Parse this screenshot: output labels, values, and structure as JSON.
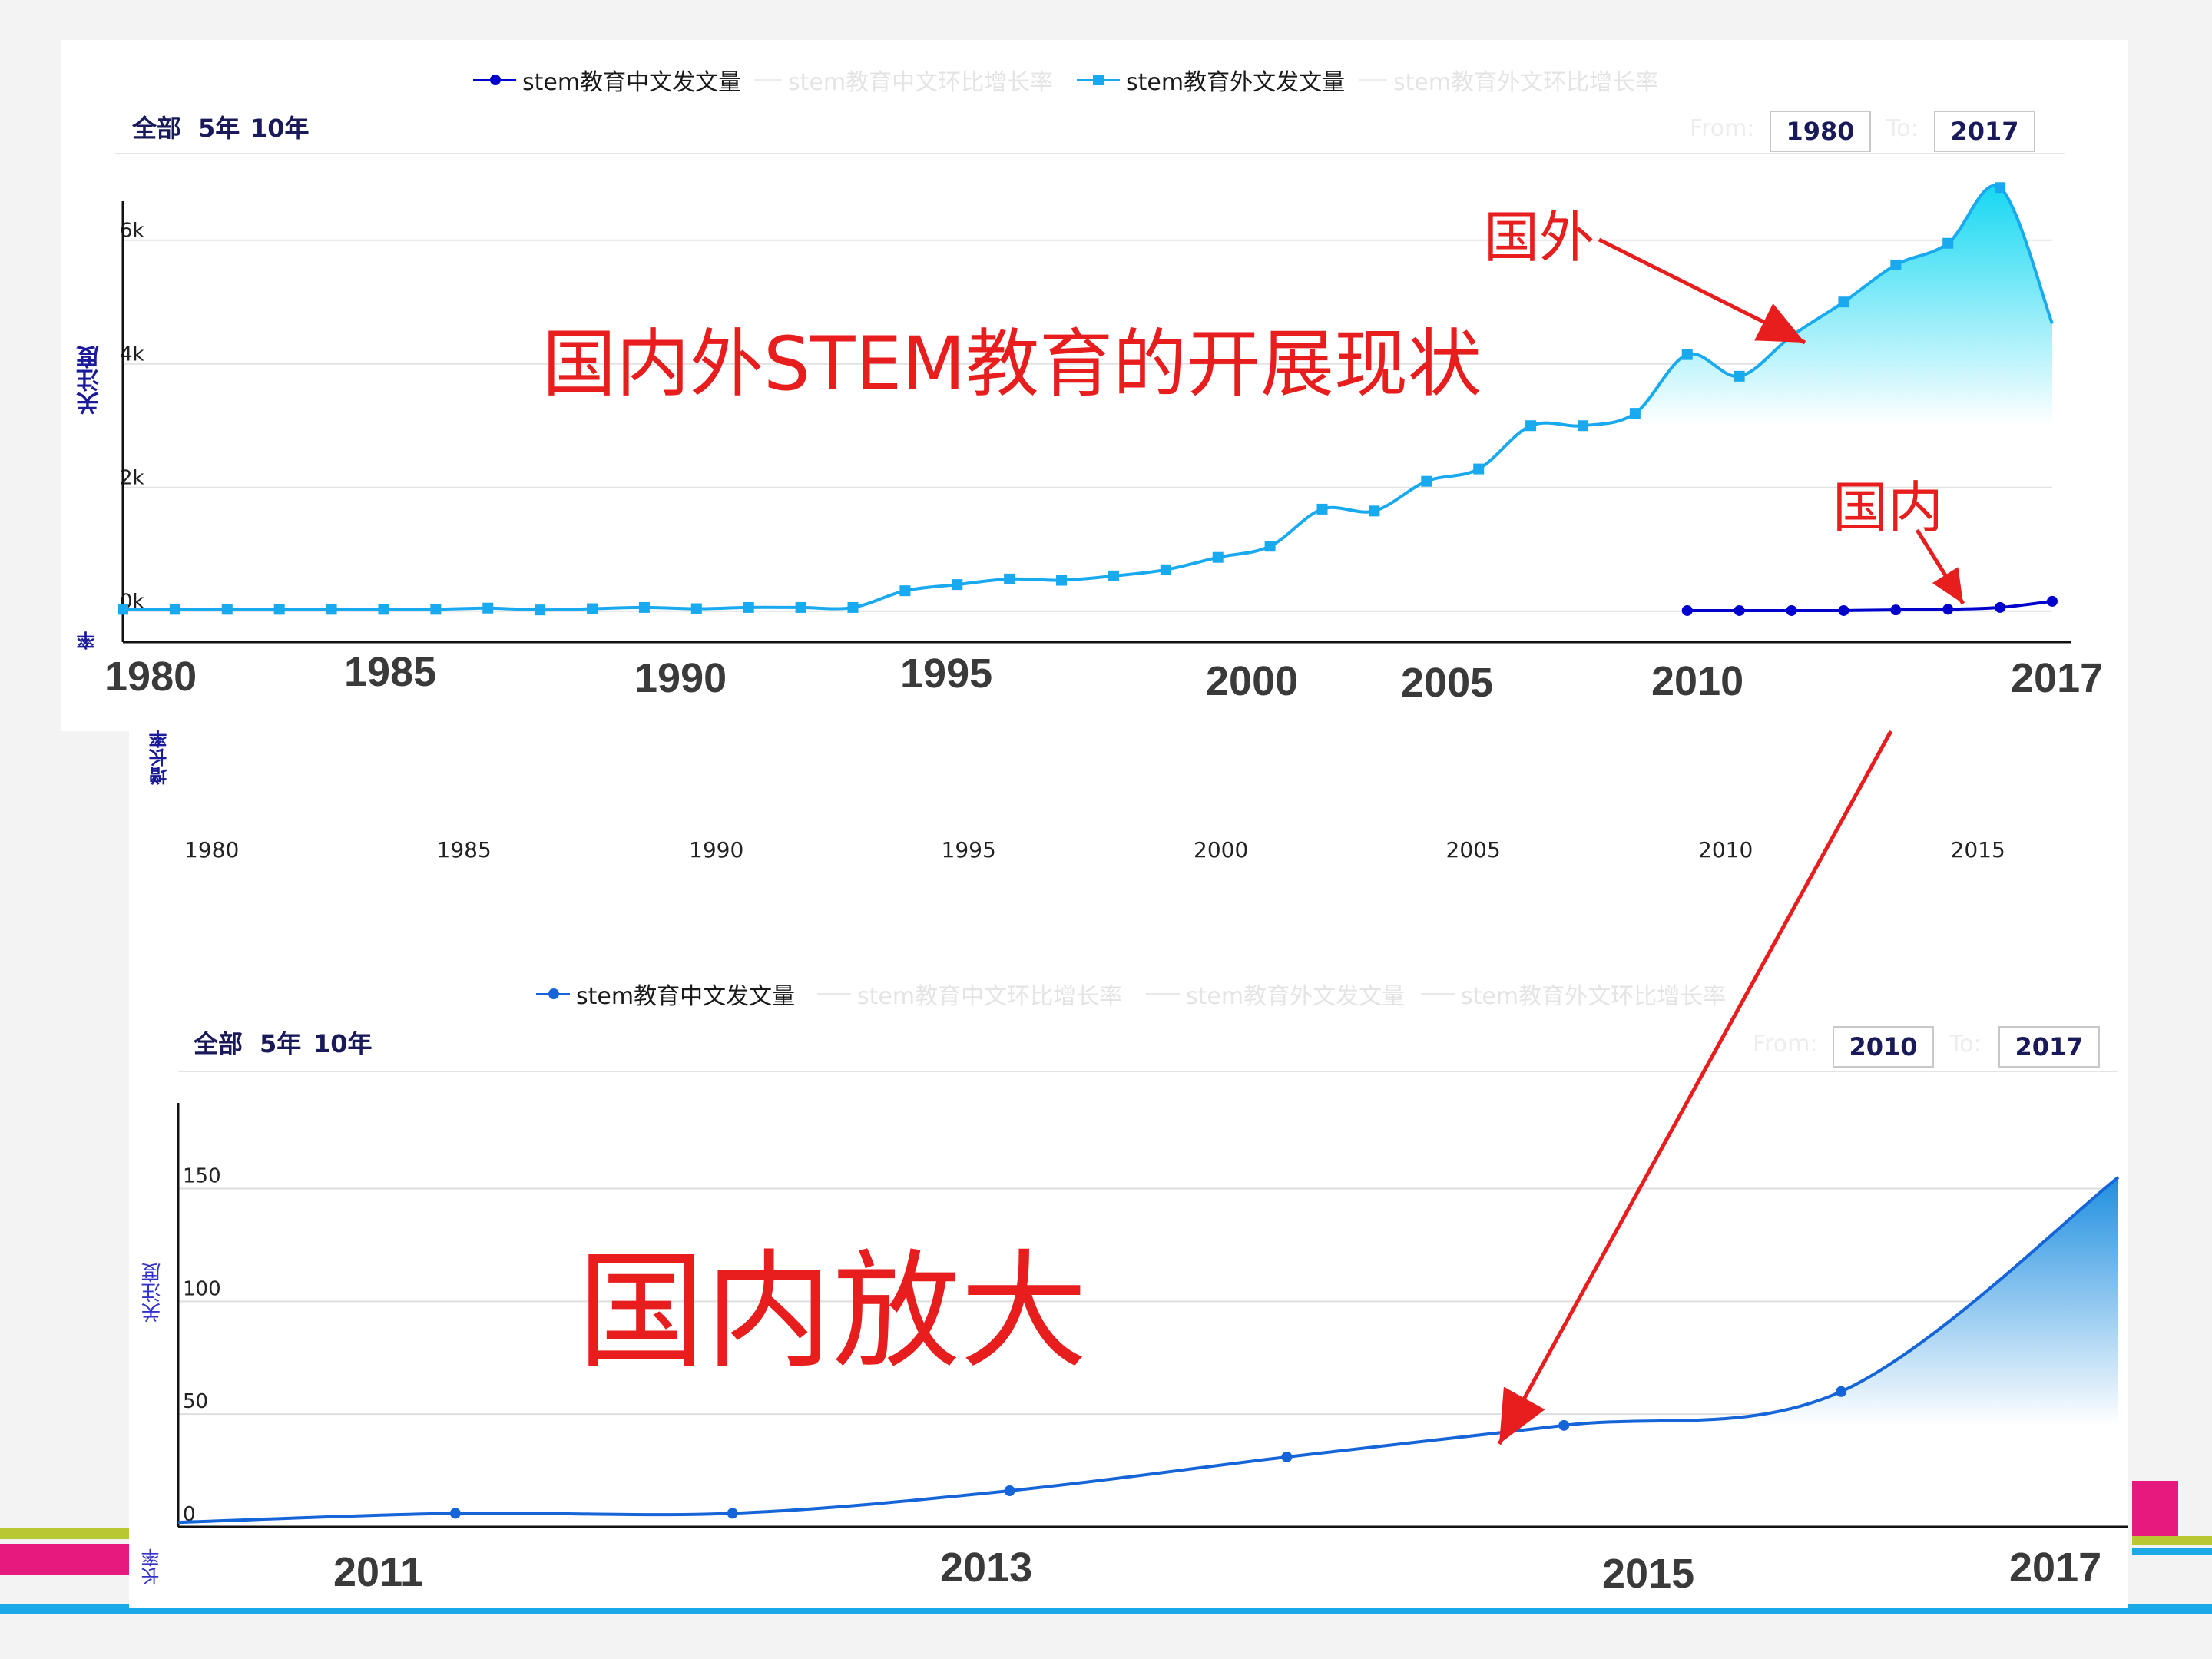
{
  "slide": {
    "title": "国内外STEM教育的开展现状",
    "zoom_title": "国内放大",
    "annotation_foreign": "国外",
    "annotation_domestic": "国内",
    "colors": {
      "foreign": "#19a9ee",
      "domestic": "#0000cc",
      "annotation": "#e81d1d",
      "stripe_magenta": "#e6197f",
      "stripe_green": "#b8c832",
      "stripe_blue": "#1aa8e6"
    }
  },
  "top_chart": {
    "legend": [
      "stem教育中文发文量",
      "stem教育中文环比增长率",
      "stem教育外文发文量",
      "stem教育外文环比增长率"
    ],
    "range_buttons": [
      "全部",
      "5年",
      "10年"
    ],
    "from_label": "From:",
    "to_label": "To:",
    "from_value": "1980",
    "to_value": "2017",
    "y_title": "关注度",
    "y_title_secondary": "率",
    "big_year_labels": [
      "1980",
      "1985",
      "1990",
      "1995",
      "2000",
      "2005",
      "2010",
      "2017"
    ],
    "secondary_y_title": "增长率",
    "secondary_year_labels": [
      "1980",
      "1985",
      "1990",
      "1995",
      "2000",
      "2005",
      "2010",
      "2015"
    ]
  },
  "bottom_chart": {
    "legend": [
      "stem教育中文发文量",
      "stem教育中文环比增长率",
      "stem教育外文发文量",
      "stem教育外文环比增长率"
    ],
    "range_buttons": [
      "全部",
      "5年",
      "10年"
    ],
    "from_label": "From:",
    "to_label": "To:",
    "from_value": "2010",
    "to_value": "2017",
    "y_title": "关注度",
    "y_title_secondary": "长率",
    "big_year_labels": [
      "2011",
      "2013",
      "2015",
      "2017"
    ]
  },
  "chart_data": [
    {
      "type": "line",
      "x": [
        1980,
        1981,
        1982,
        1983,
        1984,
        1985,
        1986,
        1987,
        1988,
        1989,
        1990,
        1991,
        1992,
        1993,
        1994,
        1995,
        1996,
        1997,
        1998,
        1999,
        2000,
        2001,
        2002,
        2003,
        2004,
        2005,
        2006,
        2007,
        2008,
        2009,
        2010,
        2011,
        2012,
        2013,
        2014,
        2015,
        2016,
        2017
      ],
      "ylim": [
        -500,
        7400
      ],
      "yticks": [
        0,
        2000,
        4000,
        6000
      ],
      "ytick_labels": [
        "0k",
        "2k",
        "4k",
        "6k"
      ],
      "series": [
        {
          "name": "stem教育外文发文量",
          "values": [
            30,
            30,
            30,
            30,
            30,
            30,
            30,
            50,
            20,
            40,
            60,
            40,
            60,
            60,
            60,
            330,
            430,
            520,
            500,
            570,
            670,
            870,
            1050,
            1650,
            1620,
            2100,
            2300,
            3000,
            3000,
            3200,
            4150,
            3800,
            4450,
            5000,
            5600,
            5950,
            6850,
            4650
          ]
        },
        {
          "name": "stem教育中文发文量",
          "x": [
            2010,
            2011,
            2012,
            2013,
            2014,
            2015,
            2016,
            2017
          ],
          "values": [
            10,
            10,
            10,
            10,
            20,
            30,
            60,
            160
          ]
        }
      ]
    },
    {
      "type": "area",
      "x": [
        2010,
        2011,
        2012,
        2013,
        2014,
        2015,
        2016,
        2017
      ],
      "ylim": [
        0,
        190
      ],
      "yticks": [
        0,
        50,
        100,
        150
      ],
      "ytick_labels": [
        "0",
        "50",
        "100",
        "150"
      ],
      "series": [
        {
          "name": "stem教育中文发文量",
          "values": [
            2,
            6,
            6,
            16,
            31,
            45,
            60,
            155
          ]
        }
      ]
    }
  ]
}
